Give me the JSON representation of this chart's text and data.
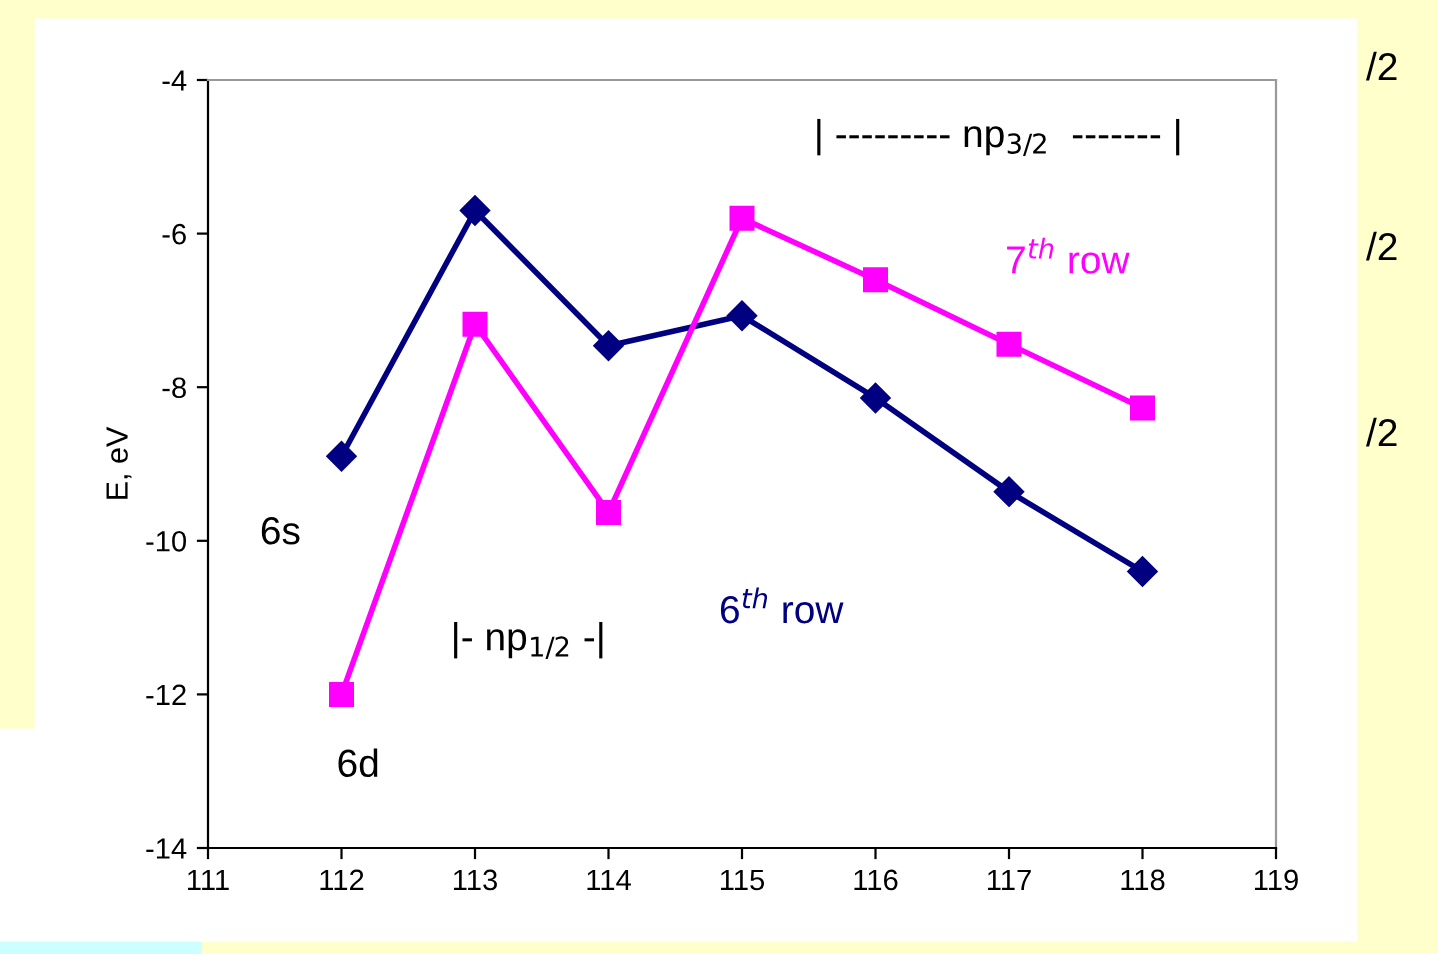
{
  "chart_data": {
    "type": "line",
    "ylabel": "E, eV",
    "x": [
      112,
      113,
      114,
      115,
      116,
      117,
      118
    ],
    "series": [
      {
        "name": "6$^{th}$ row",
        "color": "#000080",
        "marker": "diamond",
        "values": [
          -8.9,
          -5.7,
          -7.46,
          -7.07,
          -8.14,
          -9.36,
          -10.4
        ]
      },
      {
        "name": "7$^{th}$ row",
        "color": "#ff00ff",
        "marker": "square",
        "values": [
          -12.0,
          -7.18,
          -9.63,
          -5.8,
          -6.6,
          -7.44,
          -8.27
        ]
      }
    ],
    "xlim": [
      111,
      119
    ],
    "xticks": [
      111,
      112,
      113,
      114,
      115,
      116,
      117,
      118,
      119
    ],
    "ylim": [
      -14,
      -4
    ],
    "yticks": [
      -14,
      -12,
      -10,
      -8,
      -6,
      -4
    ],
    "grid": false,
    "legend": false,
    "line_style": "solid",
    "annotations": [
      {
        "text": "6s",
        "x": 112,
        "y": -8.9
      },
      {
        "text": "6d",
        "x": 112,
        "y": -12.0
      },
      "|- np$_{1/2}$ -|",
      "| --------- np$_{3/2}$  ------- |",
      "/2",
      "/2",
      "/2"
    ]
  }
}
